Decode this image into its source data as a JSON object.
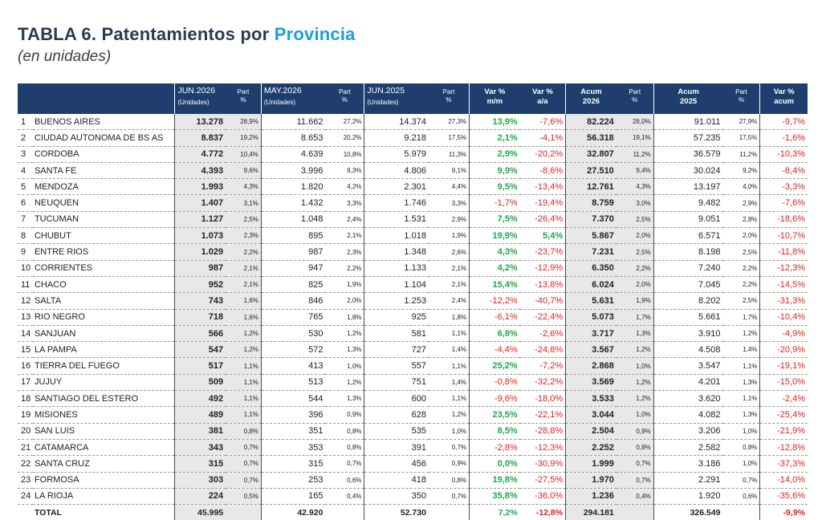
{
  "title": {
    "prefix": "TABLA 6. Patentamientos por ",
    "highlight": "Provincia",
    "subtitle": "(en unidades)"
  },
  "colors": {
    "header_bg": "#1f3e6e",
    "title_highlight": "#1aa0d8",
    "positive": "#1ea84a",
    "negative": "#e02020",
    "shade": "#e8e8e8"
  },
  "headers": {
    "jun2026": "JUN.2026",
    "jun2026_sub": "(Unidades)",
    "part": "Part",
    "pct": "%",
    "may2026": "MAY.2026",
    "may2026_sub": "(Unidades)",
    "jun2025": "JUN.2025",
    "jun2025_sub": "(Unidades)",
    "var_mm_1": "Var %",
    "var_mm_2": "m/m",
    "var_aa_1": "Var %",
    "var_aa_2": "a/a",
    "acum26_1": "Acum",
    "acum26_2": "2026",
    "acum25_1": "Acum",
    "acum25_2": "2025",
    "var_acum_1": "Var %",
    "var_acum_2": "acum"
  },
  "rows": [
    {
      "n": "1",
      "name": "BUENOS AIRES",
      "jun26": "13.278",
      "p1": "28,9%",
      "may26": "11.662",
      "p2": "27,2%",
      "jun25": "14.374",
      "p3": "27,3%",
      "vmm": "13,9%",
      "vaa": "-7,6%",
      "ac26": "82.224",
      "p4": "28,0%",
      "ac25": "91.011",
      "p5": "27,9%",
      "vac": "-9,7%"
    },
    {
      "n": "2",
      "name": "CIUDAD AUTONOMA DE BS AS",
      "jun26": "8.837",
      "p1": "19,2%",
      "may26": "8.653",
      "p2": "20,2%",
      "jun25": "9.218",
      "p3": "17,5%",
      "vmm": "2,1%",
      "vaa": "-4,1%",
      "ac26": "56.318",
      "p4": "19,1%",
      "ac25": "57.235",
      "p5": "17,5%",
      "vac": "-1,6%"
    },
    {
      "n": "3",
      "name": "CORDOBA",
      "jun26": "4.772",
      "p1": "10,4%",
      "may26": "4.639",
      "p2": "10,8%",
      "jun25": "5.979",
      "p3": "11,3%",
      "vmm": "2,9%",
      "vaa": "-20,2%",
      "ac26": "32.807",
      "p4": "11,2%",
      "ac25": "36.579",
      "p5": "11,2%",
      "vac": "-10,3%"
    },
    {
      "n": "4",
      "name": "SANTA FE",
      "jun26": "4.393",
      "p1": "9,6%",
      "may26": "3.996",
      "p2": "9,3%",
      "jun25": "4.806",
      "p3": "9,1%",
      "vmm": "9,9%",
      "vaa": "-8,6%",
      "ac26": "27.510",
      "p4": "9,4%",
      "ac25": "30.024",
      "p5": "9,2%",
      "vac": "-8,4%"
    },
    {
      "n": "5",
      "name": "MENDOZA",
      "jun26": "1.993",
      "p1": "4,3%",
      "may26": "1.820",
      "p2": "4,2%",
      "jun25": "2.301",
      "p3": "4,4%",
      "vmm": "9,5%",
      "vaa": "-13,4%",
      "ac26": "12.761",
      "p4": "4,3%",
      "ac25": "13.197",
      "p5": "4,0%",
      "vac": "-3,3%"
    },
    {
      "n": "6",
      "name": "NEUQUEN",
      "jun26": "1.407",
      "p1": "3,1%",
      "may26": "1.432",
      "p2": "3,3%",
      "jun25": "1.746",
      "p3": "3,3%",
      "vmm": "-1,7%",
      "vaa": "-19,4%",
      "ac26": "8.759",
      "p4": "3,0%",
      "ac25": "9.482",
      "p5": "2,9%",
      "vac": "-7,6%"
    },
    {
      "n": "7",
      "name": "TUCUMAN",
      "jun26": "1.127",
      "p1": "2,5%",
      "may26": "1.048",
      "p2": "2,4%",
      "jun25": "1.531",
      "p3": "2,9%",
      "vmm": "7,5%",
      "vaa": "-26,4%",
      "ac26": "7.370",
      "p4": "2,5%",
      "ac25": "9.051",
      "p5": "2,8%",
      "vac": "-18,6%"
    },
    {
      "n": "8",
      "name": "CHUBUT",
      "jun26": "1.073",
      "p1": "2,3%",
      "may26": "895",
      "p2": "2,1%",
      "jun25": "1.018",
      "p3": "1,9%",
      "vmm": "19,9%",
      "vaa": "5,4%",
      "ac26": "5.867",
      "p4": "2,0%",
      "ac25": "6.571",
      "p5": "2,0%",
      "vac": "-10,7%"
    },
    {
      "n": "9",
      "name": "ENTRE RIOS",
      "jun26": "1.029",
      "p1": "2,2%",
      "may26": "987",
      "p2": "2,3%",
      "jun25": "1.348",
      "p3": "2,6%",
      "vmm": "4,3%",
      "vaa": "-23,7%",
      "ac26": "7.231",
      "p4": "2,5%",
      "ac25": "8.198",
      "p5": "2,5%",
      "vac": "-11,8%"
    },
    {
      "n": "10",
      "name": "CORRIENTES",
      "jun26": "987",
      "p1": "2,1%",
      "may26": "947",
      "p2": "2,2%",
      "jun25": "1.133",
      "p3": "2,1%",
      "vmm": "4,2%",
      "vaa": "-12,9%",
      "ac26": "6.350",
      "p4": "2,2%",
      "ac25": "7.240",
      "p5": "2,2%",
      "vac": "-12,3%"
    },
    {
      "n": "11",
      "name": "CHACO",
      "jun26": "952",
      "p1": "2,1%",
      "may26": "825",
      "p2": "1,9%",
      "jun25": "1.104",
      "p3": "2,1%",
      "vmm": "15,4%",
      "vaa": "-13,8%",
      "ac26": "6.024",
      "p4": "2,0%",
      "ac25": "7.045",
      "p5": "2,2%",
      "vac": "-14,5%"
    },
    {
      "n": "12",
      "name": "SALTA",
      "jun26": "743",
      "p1": "1,6%",
      "may26": "846",
      "p2": "2,0%",
      "jun25": "1.253",
      "p3": "2,4%",
      "vmm": "-12,2%",
      "vaa": "-40,7%",
      "ac26": "5.631",
      "p4": "1,9%",
      "ac25": "8.202",
      "p5": "2,5%",
      "vac": "-31,3%"
    },
    {
      "n": "13",
      "name": "RIO NEGRO",
      "jun26": "718",
      "p1": "1,6%",
      "may26": "765",
      "p2": "1,8%",
      "jun25": "925",
      "p3": "1,8%",
      "vmm": "-6,1%",
      "vaa": "-22,4%",
      "ac26": "5.073",
      "p4": "1,7%",
      "ac25": "5.661",
      "p5": "1,7%",
      "vac": "-10,4%"
    },
    {
      "n": "14",
      "name": "SANJUAN",
      "jun26": "566",
      "p1": "1,2%",
      "may26": "530",
      "p2": "1,2%",
      "jun25": "581",
      "p3": "1,1%",
      "vmm": "6,8%",
      "vaa": "-2,6%",
      "ac26": "3.717",
      "p4": "1,3%",
      "ac25": "3.910",
      "p5": "1,2%",
      "vac": "-4,9%"
    },
    {
      "n": "15",
      "name": "LA PAMPA",
      "jun26": "547",
      "p1": "1,2%",
      "may26": "572",
      "p2": "1,3%",
      "jun25": "727",
      "p3": "1,4%",
      "vmm": "-4,4%",
      "vaa": "-24,8%",
      "ac26": "3.567",
      "p4": "1,2%",
      "ac25": "4.508",
      "p5": "1,4%",
      "vac": "-20,9%"
    },
    {
      "n": "16",
      "name": "TIERRA DEL FUEGO",
      "jun26": "517",
      "p1": "1,1%",
      "may26": "413",
      "p2": "1,0%",
      "jun25": "557",
      "p3": "1,1%",
      "vmm": "25,2%",
      "vaa": "-7,2%",
      "ac26": "2.868",
      "p4": "1,0%",
      "ac25": "3.547",
      "p5": "1,1%",
      "vac": "-19,1%"
    },
    {
      "n": "17",
      "name": "JUJUY",
      "jun26": "509",
      "p1": "1,1%",
      "may26": "513",
      "p2": "1,2%",
      "jun25": "751",
      "p3": "1,4%",
      "vmm": "-0,8%",
      "vaa": "-32,2%",
      "ac26": "3.569",
      "p4": "1,2%",
      "ac25": "4.201",
      "p5": "1,3%",
      "vac": "-15,0%"
    },
    {
      "n": "18",
      "name": "SANTIAGO DEL ESTERO",
      "jun26": "492",
      "p1": "1,1%",
      "may26": "544",
      "p2": "1,3%",
      "jun25": "600",
      "p3": "1,1%",
      "vmm": "-9,6%",
      "vaa": "-18,0%",
      "ac26": "3.533",
      "p4": "1,2%",
      "ac25": "3.620",
      "p5": "1,1%",
      "vac": "-2,4%"
    },
    {
      "n": "19",
      "name": "MISIONES",
      "jun26": "489",
      "p1": "1,1%",
      "may26": "396",
      "p2": "0,9%",
      "jun25": "628",
      "p3": "1,2%",
      "vmm": "23,5%",
      "vaa": "-22,1%",
      "ac26": "3.044",
      "p4": "1,0%",
      "ac25": "4.082",
      "p5": "1,3%",
      "vac": "-25,4%"
    },
    {
      "n": "20",
      "name": "SAN LUIS",
      "jun26": "381",
      "p1": "0,8%",
      "may26": "351",
      "p2": "0,8%",
      "jun25": "535",
      "p3": "1,0%",
      "vmm": "8,5%",
      "vaa": "-28,8%",
      "ac26": "2.504",
      "p4": "0,9%",
      "ac25": "3.206",
      "p5": "1,0%",
      "vac": "-21,9%"
    },
    {
      "n": "21",
      "name": "CATAMARCA",
      "jun26": "343",
      "p1": "0,7%",
      "may26": "353",
      "p2": "0,8%",
      "jun25": "391",
      "p3": "0,7%",
      "vmm": "-2,8%",
      "vaa": "-12,3%",
      "ac26": "2.252",
      "p4": "0,8%",
      "ac25": "2.582",
      "p5": "0,8%",
      "vac": "-12,8%"
    },
    {
      "n": "22",
      "name": "SANTA CRUZ",
      "jun26": "315",
      "p1": "0,7%",
      "may26": "315",
      "p2": "0,7%",
      "jun25": "456",
      "p3": "0,9%",
      "vmm": "0,0%",
      "vaa": "-30,9%",
      "ac26": "1.999",
      "p4": "0,7%",
      "ac25": "3.186",
      "p5": "1,0%",
      "vac": "-37,3%"
    },
    {
      "n": "23",
      "name": "FORMOSA",
      "jun26": "303",
      "p1": "0,7%",
      "may26": "253",
      "p2": "0,6%",
      "jun25": "418",
      "p3": "0,8%",
      "vmm": "19,8%",
      "vaa": "-27,5%",
      "ac26": "1.970",
      "p4": "0,7%",
      "ac25": "2.291",
      "p5": "0,7%",
      "vac": "-14,0%"
    },
    {
      "n": "24",
      "name": "LA RIOJA",
      "jun26": "224",
      "p1": "0,5%",
      "may26": "165",
      "p2": "0,4%",
      "jun25": "350",
      "p3": "0,7%",
      "vmm": "35,8%",
      "vaa": "-36,0%",
      "ac26": "1.236",
      "p4": "0,4%",
      "ac25": "1.920",
      "p5": "0,6%",
      "vac": "-35,6%"
    }
  ],
  "total": {
    "name": "TOTAL",
    "jun26": "45.995",
    "may26": "42.920",
    "jun25": "52.730",
    "vmm": "7,2%",
    "vaa": "-12,8%",
    "ac26": "294.181",
    "ac25": "326.549",
    "vac": "-9,9%"
  }
}
